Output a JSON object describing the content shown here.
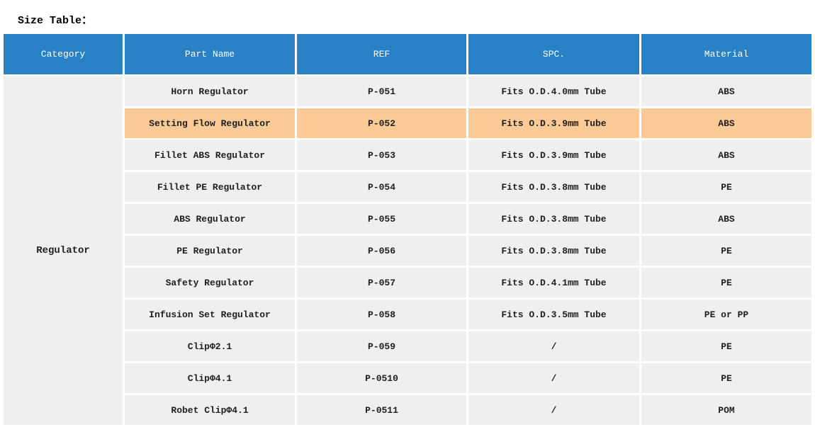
{
  "page": {
    "title": "Size Table："
  },
  "table": {
    "headers": [
      "Category",
      "Part Name",
      "REF",
      "SPC.",
      "Material"
    ],
    "category": "Regulator",
    "columns": [
      "part_name",
      "ref",
      "spc",
      "material"
    ],
    "rows": [
      {
        "part_name": "Horn Regulator",
        "ref": "P-051",
        "spc": "Fits O.D.4.0mm Tube",
        "material": "ABS",
        "highlighted": false
      },
      {
        "part_name": "Setting Flow Regulator",
        "ref": "P-052",
        "spc": "Fits O.D.3.9mm Tube",
        "material": "ABS",
        "highlighted": true
      },
      {
        "part_name": "Fillet ABS Regulator",
        "ref": "P-053",
        "spc": "Fits O.D.3.9mm Tube",
        "material": "ABS",
        "highlighted": false
      },
      {
        "part_name": "Fillet PE Regulator",
        "ref": "P-054",
        "spc": "Fits O.D.3.8mm Tube",
        "material": "PE",
        "highlighted": false
      },
      {
        "part_name": "ABS Regulator",
        "ref": "P-055",
        "spc": "Fits O.D.3.8mm Tube",
        "material": "ABS",
        "highlighted": false
      },
      {
        "part_name": "PE Regulator",
        "ref": "P-056",
        "spc": "Fits O.D.3.8mm Tube",
        "material": "PE",
        "highlighted": false
      },
      {
        "part_name": "Safety Regulator",
        "ref": "P-057",
        "spc": "Fits O.D.4.1mm Tube",
        "material": "PE",
        "highlighted": false
      },
      {
        "part_name": "Infusion Set Regulator",
        "ref": "P-058",
        "spc": "Fits O.D.3.5mm Tube",
        "material": "PE or PP",
        "highlighted": false
      },
      {
        "part_name": "ClipΦ2.1",
        "ref": "P-059",
        "spc": "/",
        "material": "PE",
        "highlighted": false
      },
      {
        "part_name": "ClipΦ4.1",
        "ref": "P-0510",
        "spc": "/",
        "material": "PE",
        "highlighted": false
      },
      {
        "part_name": "Robet ClipΦ4.1",
        "ref": "P-0511",
        "spc": "/",
        "material": "POM",
        "highlighted": false
      }
    ],
    "colors": {
      "header_bg": "#2781c4",
      "header_text": "#ffffff",
      "row_bg": "#efefef",
      "highlight_bg": "#fbca97",
      "text": "#1f1f1f"
    }
  }
}
